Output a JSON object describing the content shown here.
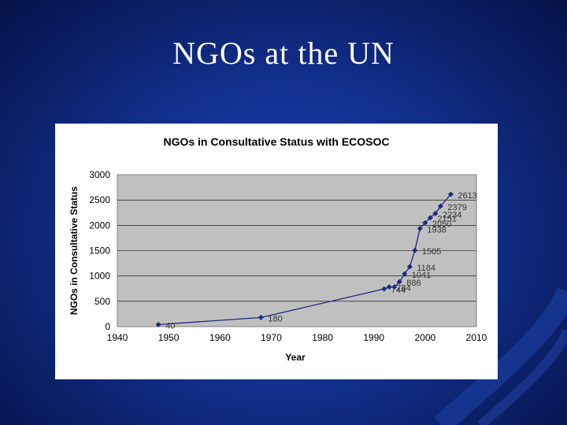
{
  "slide": {
    "title": "NGOs at the UN"
  },
  "colors": {
    "background": "#12308f",
    "plot_area": "#c0c0c0",
    "series": "#1f2a80"
  },
  "chart_data": {
    "type": "line",
    "title": "NGOs in Consultative Status with ECOSOC",
    "xlabel": "Year",
    "ylabel": "NGOs in Consultative Status",
    "xlim": [
      1940,
      2010
    ],
    "ylim": [
      0,
      3000
    ],
    "x_ticks": [
      "1940",
      "1950",
      "1960",
      "1970",
      "1980",
      "1990",
      "2000",
      "2010"
    ],
    "y_ticks": [
      "0",
      "500",
      "1000",
      "1500",
      "2000",
      "2500",
      "3000"
    ],
    "grid": "horizontal",
    "legend": "none",
    "series": [
      {
        "x": [
          1948,
          1968,
          1992,
          1993,
          1994,
          1995,
          1996,
          1997,
          1998,
          1999,
          2000,
          2001,
          2002,
          2003,
          2005
        ],
        "y": [
          40,
          180,
          744,
          784,
          784,
          886,
          1041,
          1184,
          1505,
          1938,
          2050,
          2151,
          2234,
          2379,
          2613
        ],
        "labels": [
          "40",
          "180",
          "744",
          "784",
          "",
          "886",
          "1041",
          "1184",
          "1505",
          "1938",
          "2050",
          "2151",
          "2234",
          "2379",
          "2613"
        ]
      }
    ]
  }
}
